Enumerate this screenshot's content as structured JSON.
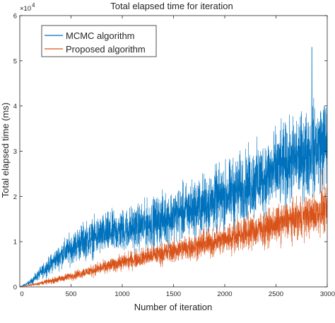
{
  "chart_data": {
    "type": "line",
    "title": "Total elapsed time for iteration",
    "xlabel": "Number of iteration",
    "ylabel": "Total elapsed time (ms)",
    "y_multiplier_label": "×10",
    "y_multiplier_exponent": "4",
    "xlim": [
      0,
      3000
    ],
    "ylim": [
      0,
      6
    ],
    "x_tick_values": [
      0,
      500,
      1000,
      1500,
      2000,
      2500,
      3000
    ],
    "x_tick_labels": [
      "0",
      "500",
      "1000",
      "1500",
      "2000",
      "2500",
      "3000"
    ],
    "y_tick_values": [
      0,
      1,
      2,
      3,
      4,
      5,
      6
    ],
    "y_tick_labels": [
      "0",
      "1",
      "2",
      "3",
      "4",
      "5",
      "6"
    ],
    "legend_position": "top-left",
    "grid": false,
    "series": [
      {
        "name": "MCMC algorithm",
        "color": "#0072BD",
        "points_per_unit_note": "",
        "n_points": 3000,
        "trend_x": [
          0,
          100,
          200,
          400,
          600,
          800,
          1000,
          1200,
          1400,
          1600,
          1800,
          2000,
          2200,
          2400,
          2600,
          2800,
          3000
        ],
        "trend_y": [
          0,
          0.1,
          0.3,
          0.7,
          1.0,
          1.15,
          1.25,
          1.35,
          1.5,
          1.65,
          1.8,
          2.0,
          2.2,
          2.45,
          2.7,
          2.95,
          3.2
        ],
        "noise_amplitude": [
          0,
          0.05,
          0.12,
          0.25,
          0.35,
          0.4,
          0.42,
          0.45,
          0.5,
          0.55,
          0.6,
          0.65,
          0.7,
          0.75,
          0.8,
          0.85,
          0.9
        ],
        "peak_x": 2850,
        "peak_y": 5.3
      },
      {
        "name": "Proposed algorithm",
        "color": "#D95319",
        "n_points": 3000,
        "trend_x": [
          0,
          200,
          400,
          600,
          800,
          1000,
          1200,
          1400,
          1600,
          1800,
          2000,
          2200,
          2400,
          2600,
          2800,
          3000
        ],
        "trend_y": [
          0,
          0.08,
          0.18,
          0.3,
          0.42,
          0.55,
          0.65,
          0.75,
          0.85,
          0.95,
          1.05,
          1.2,
          1.3,
          1.45,
          1.55,
          1.7
        ],
        "noise_amplitude": [
          0,
          0.04,
          0.07,
          0.1,
          0.13,
          0.16,
          0.19,
          0.22,
          0.25,
          0.28,
          0.3,
          0.33,
          0.35,
          0.38,
          0.4,
          0.42
        ],
        "peak_x": 2950,
        "peak_y": 2.6
      }
    ]
  }
}
